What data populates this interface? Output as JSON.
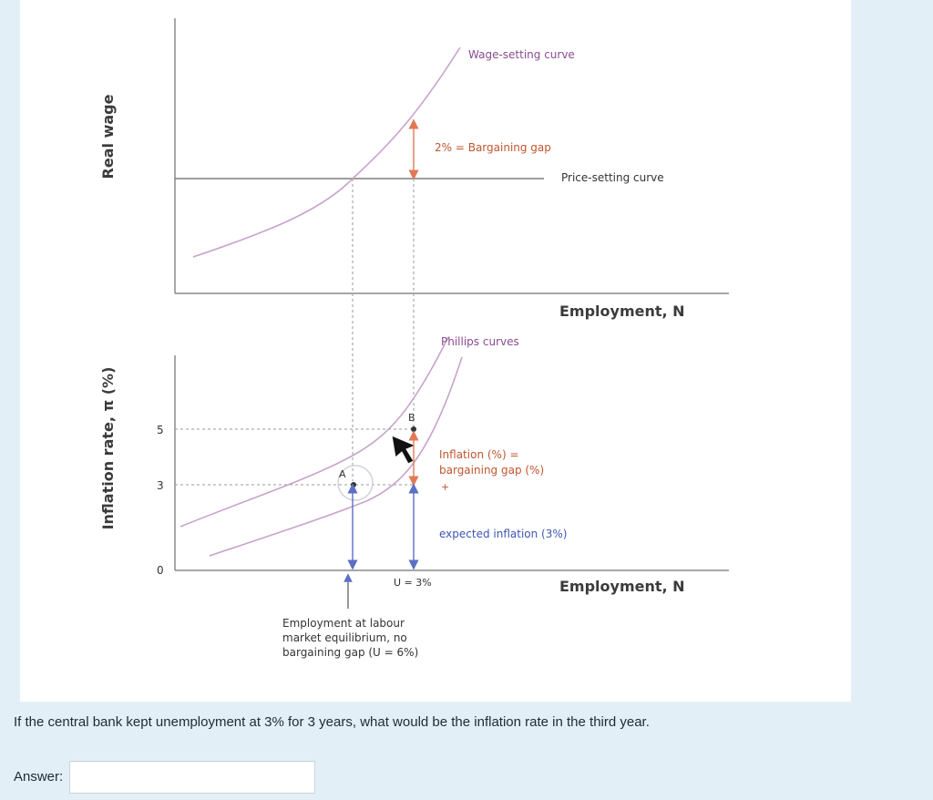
{
  "figure": {
    "top_chart": {
      "ylabel": "Real wage",
      "xlabel": "Employment, N",
      "wage_curve_label": "Wage-setting curve",
      "price_curve_label": "Price-setting curve",
      "gap_label": "2% = Bargaining gap"
    },
    "bottom_chart": {
      "ylabel": "Inflation rate, π (%)",
      "xlabel": "Employment, N",
      "ticks": [
        "5",
        "3",
        "0"
      ],
      "phillips_label": "Phillips curves",
      "point_a": "A",
      "point_b": "B",
      "inflation_label_line1": "Inflation (%) =",
      "inflation_label_line2": "bargaining gap (%)",
      "inflation_label_plus": "+",
      "expected_label": "expected inflation (3%)",
      "u_label": "U = 3%",
      "equilibrium_line1": "Employment at labour",
      "equilibrium_line2": "market equilibrium, no",
      "equilibrium_line3": "bargaining gap (U = 6%)"
    },
    "colors": {
      "curve": "#c9a2cc",
      "gap_arrow": "#e07a55",
      "blue_arrow": "#5b6fc4",
      "axis": "#7a7a7a",
      "label_purple": "#8a4b91",
      "label_orange": "#c0562f",
      "label_blue": "#3e56b3"
    }
  },
  "question": {
    "text": "If the central bank kept unemployment at 3% for 3 years, what would be the inflation rate in the third year."
  },
  "answer": {
    "label": "Answer:",
    "value": ""
  }
}
